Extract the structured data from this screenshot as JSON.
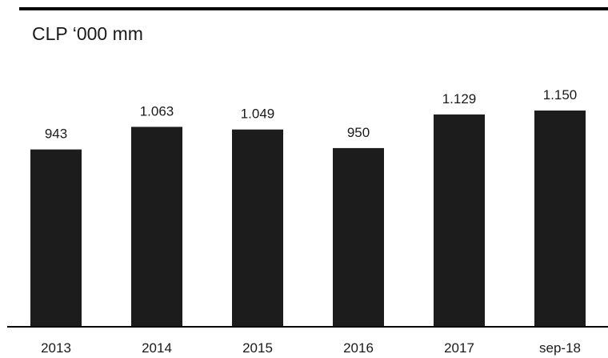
{
  "chart_data": {
    "type": "bar",
    "unit_label": "CLP ‘000 mm",
    "categories": [
      "2013",
      "2014",
      "2015",
      "2016",
      "2017",
      "sep-18"
    ],
    "values": [
      943,
      1063,
      1049,
      950,
      1129,
      1150
    ],
    "value_labels": [
      "943",
      "1.063",
      "1.049",
      "950",
      "1.129",
      "1.150"
    ],
    "bar_color": "#1c1c1c",
    "grid": false,
    "legend": "none"
  }
}
